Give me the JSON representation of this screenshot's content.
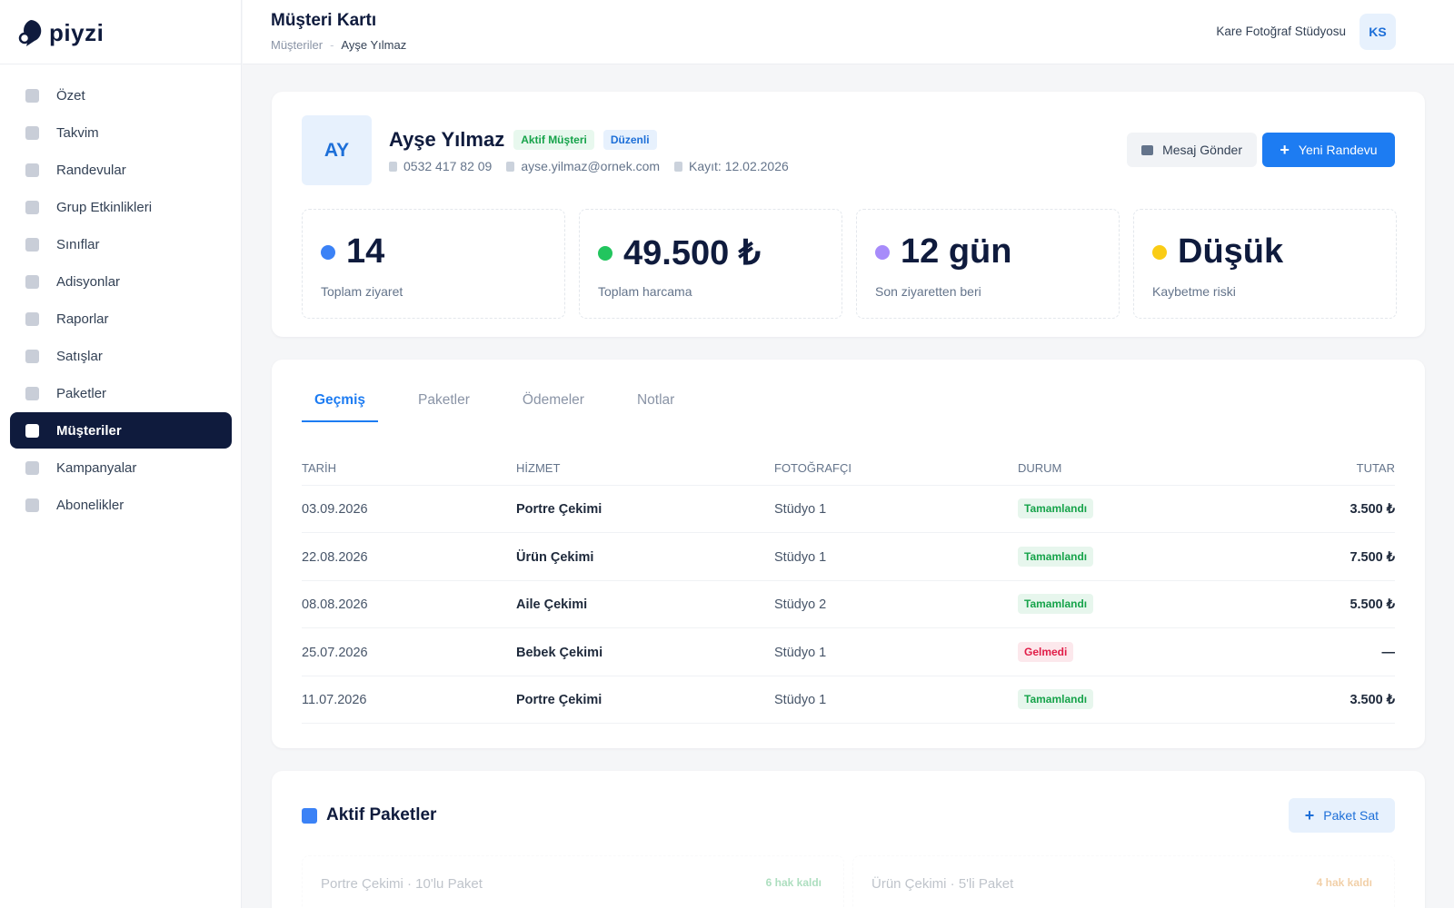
{
  "brand": "piyzi",
  "header": {
    "title": "Müşteri Kartı",
    "breadcrumb": [
      "Müşteriler",
      "Ayşe Yılmaz"
    ],
    "studio": "Kare Fotoğraf Stüdyosu",
    "user_initials": "KS"
  },
  "sidebar": {
    "items": [
      "Özet",
      "Takvim",
      "Randevular",
      "Grup Etkinlikleri",
      "Sınıflar",
      "Adisyonlar",
      "Raporlar",
      "Satışlar",
      "Paketler",
      "Müşteriler",
      "Kampanyalar",
      "Abonelikler"
    ],
    "active": 9
  },
  "customer": {
    "initials": "AY",
    "name": "Ayşe Yılmaz",
    "badges": [
      {
        "text": "Aktif Müşteri",
        "color": "#16a34a",
        "background": "#e8f8ee"
      },
      {
        "text": "Düzenli",
        "color": "#1d6fd8",
        "background": "#e7f1fd"
      }
    ],
    "phone": "0532 417 82 09",
    "email": "ayse.yilmaz@ornek.com",
    "registered": "Kayıt: 12.02.2026",
    "actions": [
      "Mesaj Gönder",
      "Yeni Randevu"
    ]
  },
  "stats": [
    {
      "value": "14",
      "label": "Toplam ziyaret",
      "color": "#3b82f6"
    },
    {
      "value": "49.500 ₺",
      "label": "Toplam harcama",
      "color": "#22c55e"
    },
    {
      "value": "12 gün",
      "label": "Son ziyaretten beri",
      "color": "#a78bfa"
    },
    {
      "value": "Düşük",
      "label": "Kaybetme riski",
      "color": "#facc15"
    }
  ],
  "tabs": [
    "Geçmiş",
    "Paketler",
    "Ödemeler",
    "Notlar"
  ],
  "active_tab": 0,
  "table": {
    "columns": [
      "TARİH",
      "HİZMET",
      "FOTOĞRAFÇI",
      "DURUM",
      "TUTAR"
    ],
    "rows": [
      {
        "date": "03.09.2026",
        "service": "Portre Çekimi",
        "photographer": "Stüdyo 1",
        "status": "Tamamlandı",
        "status_color": "#16a34a",
        "amount": "3.500 ₺"
      },
      {
        "date": "22.08.2026",
        "service": "Ürün Çekimi",
        "photographer": "Stüdyo 1",
        "status": "Tamamlandı",
        "status_color": "#16a34a",
        "amount": "7.500 ₺"
      },
      {
        "date": "08.08.2026",
        "service": "Aile Çekimi",
        "photographer": "Stüdyo 2",
        "status": "Tamamlandı",
        "status_color": "#16a34a",
        "amount": "5.500 ₺"
      },
      {
        "date": "25.07.2026",
        "service": "Bebek Çekimi",
        "photographer": "Stüdyo 1",
        "status": "Gelmedi",
        "status_color": "#e11d48",
        "amount": "—"
      },
      {
        "date": "11.07.2026",
        "service": "Portre Çekimi",
        "photographer": "Stüdyo 1",
        "status": "Tamamlandı",
        "status_color": "#16a34a",
        "amount": "3.500 ₺"
      }
    ]
  },
  "packages": {
    "title": "Aktif Paketler",
    "action": "Paket Sat",
    "items": [
      {
        "name": "Portre Çekimi · 10'lu Paket",
        "remaining": "6 hak kaldı",
        "color": "#16a34a"
      },
      {
        "name": "Ürün Çekimi · 5'li Paket",
        "remaining": "4 hak kaldı",
        "color": "#d97706"
      }
    ]
  }
}
